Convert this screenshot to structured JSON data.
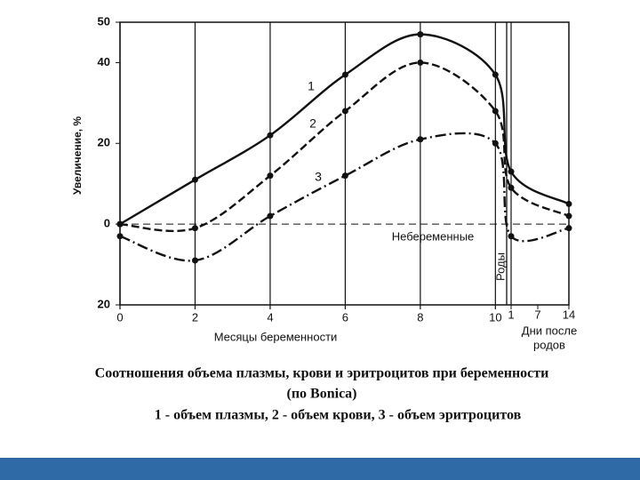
{
  "chart_data": {
    "type": "line",
    "title": "Соотношения объема плазмы, крови и эритроцитов при беременности",
    "subtitle": "(по Bonica)",
    "legend_text": "1 - объем плазмы, 2 - объем крови, 3 - объем эритроцитов",
    "y_label": "Увеличение, %",
    "x_label": "Месяцы беременности",
    "days_label": [
      "Дни после",
      "родов"
    ],
    "birth_label": "Роды",
    "baseline_label": "Небеременные",
    "x": [
      0,
      2,
      4,
      6,
      8,
      10
    ],
    "xlim": [
      0,
      10.3
    ],
    "xticks": [
      0,
      2,
      4,
      6,
      8,
      10
    ],
    "days_x": [
      1,
      14
    ],
    "days_xlim": [
      0,
      14
    ],
    "days_xticks": [
      1,
      7,
      14
    ],
    "ylim": [
      -20,
      50
    ],
    "yticks": [
      {
        "value": -20,
        "label": "20"
      },
      0,
      20,
      40,
      50
    ],
    "series": [
      {
        "name": "1",
        "color": "#111111",
        "values": [
          0,
          11,
          22,
          37,
          47,
          37
        ],
        "days_values": [
          13,
          5
        ]
      },
      {
        "name": "2",
        "color": "#111111",
        "values": [
          0,
          -1,
          12,
          28,
          40,
          28
        ],
        "days_values": [
          9,
          2
        ]
      },
      {
        "name": "3",
        "color": "#111111",
        "values": [
          -3,
          -9,
          2,
          12,
          21,
          20
        ],
        "days_values": [
          -3,
          -1
        ]
      }
    ]
  }
}
